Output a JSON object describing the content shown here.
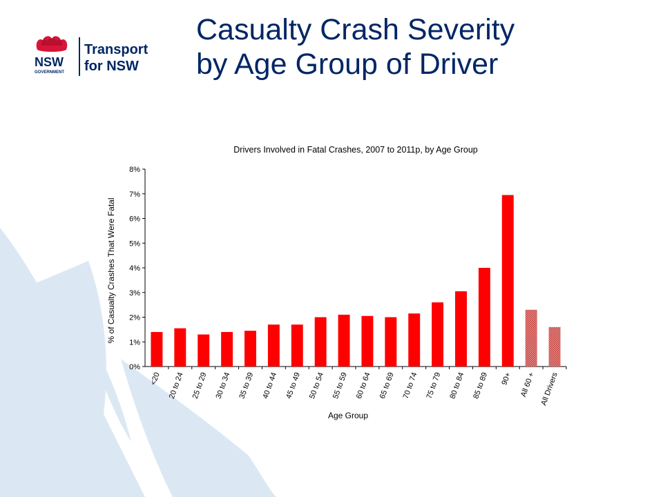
{
  "slide": {
    "title_line1": "Casualty Crash Severity",
    "title_line2": "by Age Group of Driver"
  },
  "logo": {
    "word1": "NSW",
    "word2": "GOVERNMENT",
    "word3": "Transport",
    "word4": "for NSW"
  },
  "colors": {
    "bar": "#ff0000",
    "bar_hatched": "#c0302a",
    "title": "#002664",
    "decor": "#dbe8f4"
  },
  "chart_data": {
    "type": "bar",
    "title": "Drivers Involved  in Fatal Crashes, 2007 to 2011p, by Age Group",
    "xlabel": "Age Group",
    "ylabel": "% of Casualty Crashes  That Were Fatal",
    "ylim": [
      0,
      8
    ],
    "yticks": [
      "0%",
      "1%",
      "2%",
      "3%",
      "4%",
      "5%",
      "6%",
      "7%",
      "8%"
    ],
    "categories": [
      "<20",
      "20 to 24",
      "25 to 29",
      "30 to 34",
      "35 to 39",
      "40 to 44",
      "45 to 49",
      "50 to 54",
      "55 to 59",
      "60 to 64",
      "65 to 69",
      "70 to 74",
      "75 to 79",
      "80 to 84",
      "85 to 89",
      "90+",
      "All 60 +",
      "All Drivers"
    ],
    "values": [
      1.4,
      1.55,
      1.3,
      1.4,
      1.45,
      1.7,
      1.7,
      2.0,
      2.1,
      2.05,
      2.0,
      2.15,
      2.6,
      3.05,
      4.0,
      6.95,
      2.3,
      1.6
    ],
    "hatched": [
      false,
      false,
      false,
      false,
      false,
      false,
      false,
      false,
      false,
      false,
      false,
      false,
      false,
      false,
      false,
      false,
      true,
      true
    ],
    "grid": false,
    "legend": "none"
  }
}
